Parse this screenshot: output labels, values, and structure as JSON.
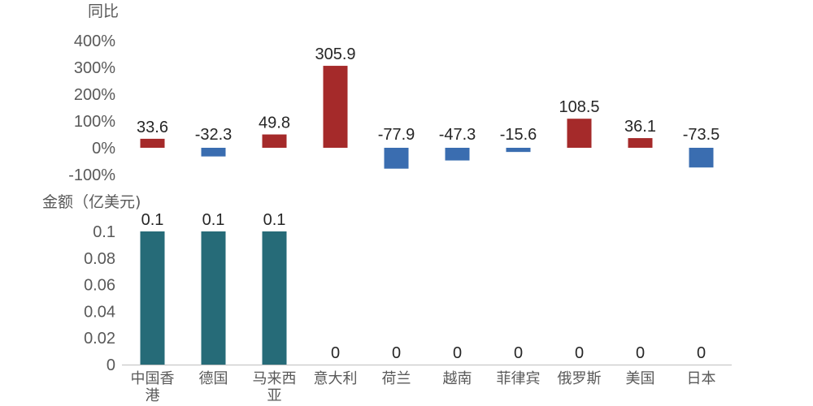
{
  "chart_data": [
    {
      "type": "bar",
      "ylabel": "同比",
      "categories": [
        "中国香港",
        "德国",
        "马来西亚",
        "意大利",
        "荷兰",
        "越南",
        "菲律宾",
        "俄罗斯",
        "美国",
        "日本"
      ],
      "values": [
        33.6,
        -32.3,
        49.8,
        305.9,
        -77.9,
        -47.3,
        -15.6,
        108.5,
        36.1,
        -73.5
      ],
      "ylim": [
        -100,
        400
      ],
      "yticks": [
        "-100%",
        "0%",
        "100%",
        "200%",
        "300%",
        "400%"
      ],
      "positive_color": "#a52a2a",
      "negative_color": "#3a6db0",
      "grid": false
    },
    {
      "type": "bar",
      "ylabel": "金额（亿美元)",
      "categories": [
        "中国香港",
        "德国",
        "马来西亚",
        "意大利",
        "荷兰",
        "越南",
        "菲律宾",
        "俄罗斯",
        "美国",
        "日本"
      ],
      "values": [
        0.1,
        0.1,
        0.1,
        0,
        0,
        0,
        0,
        0,
        0,
        0
      ],
      "ylim": [
        0,
        0.1
      ],
      "yticks": [
        "0",
        "0.02",
        "0.04",
        "0.06",
        "0.08",
        "0.1"
      ],
      "bar_color": "#266b78",
      "grid": false
    }
  ]
}
